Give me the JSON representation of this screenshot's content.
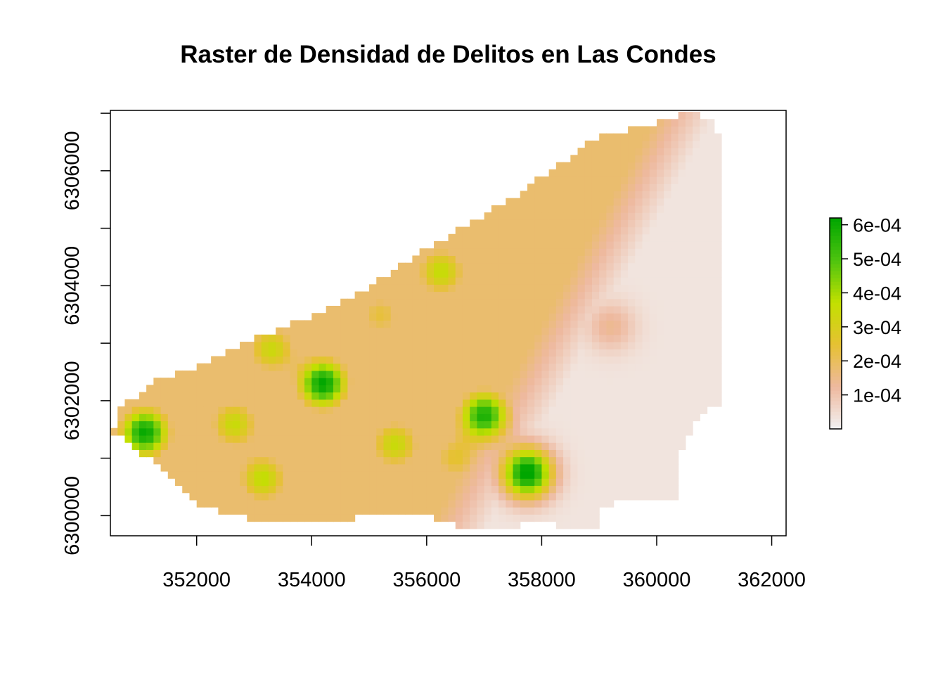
{
  "chart_data": {
    "type": "heatmap",
    "title": "Raster de Densidad de Delitos en Las Condes",
    "xlabel": "",
    "ylabel": "",
    "xlim": [
      350500,
      362250
    ],
    "ylim": [
      6299650,
      6307050
    ],
    "x_ticks": [
      352000,
      354000,
      356000,
      358000,
      360000,
      362000
    ],
    "x_tick_labels": [
      "352000",
      "354000",
      "356000",
      "358000",
      "360000",
      "362000"
    ],
    "y_ticks": [
      6300000,
      6301000,
      6302000,
      6303000,
      6304000,
      6305000,
      6306000,
      6307000
    ],
    "y_tick_labels": [
      "6300000",
      "",
      "6302000",
      "",
      "6304000",
      "",
      "6306000",
      ""
    ],
    "legend": {
      "position": "right",
      "min": 0,
      "max": 0.00062,
      "ticks": [
        0.0001,
        0.0002,
        0.0003,
        0.0004,
        0.0005,
        0.0006
      ],
      "tick_labels": [
        "1e-04",
        "2e-04",
        "3e-04",
        "4e-04",
        "5e-04",
        "6e-04"
      ],
      "colors": [
        "#f2f2f2",
        "#eeb99f",
        "#e6c133",
        "#c2e000",
        "#4ec40f",
        "#00a600"
      ]
    },
    "hotspots": [
      {
        "x": 351100,
        "y": 6301450,
        "value": 0.00058
      },
      {
        "x": 354200,
        "y": 6302300,
        "value": 0.00059
      },
      {
        "x": 357000,
        "y": 6301750,
        "value": 0.00055
      },
      {
        "x": 357750,
        "y": 6300750,
        "value": 0.00062
      },
      {
        "x": 353150,
        "y": 6300650,
        "value": 0.00034
      },
      {
        "x": 352650,
        "y": 6301600,
        "value": 0.00032
      },
      {
        "x": 355450,
        "y": 6301250,
        "value": 0.00032
      },
      {
        "x": 356250,
        "y": 6304250,
        "value": 0.00033
      },
      {
        "x": 353300,
        "y": 6302900,
        "value": 0.00031
      },
      {
        "x": 356500,
        "y": 6301000,
        "value": 0.00022
      },
      {
        "x": 355200,
        "y": 6303500,
        "value": 0.00021
      },
      {
        "x": 359200,
        "y": 6303300,
        "value": 0.00011
      },
      {
        "x": 358700,
        "y": 6305200,
        "value": 9e-05
      }
    ],
    "area_outline": [
      [
        350600,
        6301800
      ],
      [
        351200,
        6302300
      ],
      [
        351800,
        6302500
      ],
      [
        352500,
        6302850
      ],
      [
        353300,
        6303200
      ],
      [
        354300,
        6303600
      ],
      [
        355200,
        6304100
      ],
      [
        356000,
        6304650
      ],
      [
        356800,
        6305100
      ],
      [
        357600,
        6305600
      ],
      [
        358300,
        6306100
      ],
      [
        359000,
        6306600
      ],
      [
        360000,
        6306850
      ],
      [
        360600,
        6307050
      ],
      [
        361000,
        6306850
      ],
      [
        361150,
        6306300
      ],
      [
        361150,
        6302000
      ],
      [
        360700,
        6301700
      ],
      [
        360400,
        6301100
      ],
      [
        360400,
        6300300
      ],
      [
        359100,
        6300200
      ],
      [
        358900,
        6299700
      ],
      [
        358000,
        6299900
      ],
      [
        357000,
        6299700
      ],
      [
        356000,
        6300000
      ],
      [
        355000,
        6300000
      ],
      [
        354200,
        6299850
      ],
      [
        353300,
        6299850
      ],
      [
        352000,
        6300200
      ],
      [
        351300,
        6300900
      ],
      [
        350550,
        6301450
      ]
    ]
  }
}
